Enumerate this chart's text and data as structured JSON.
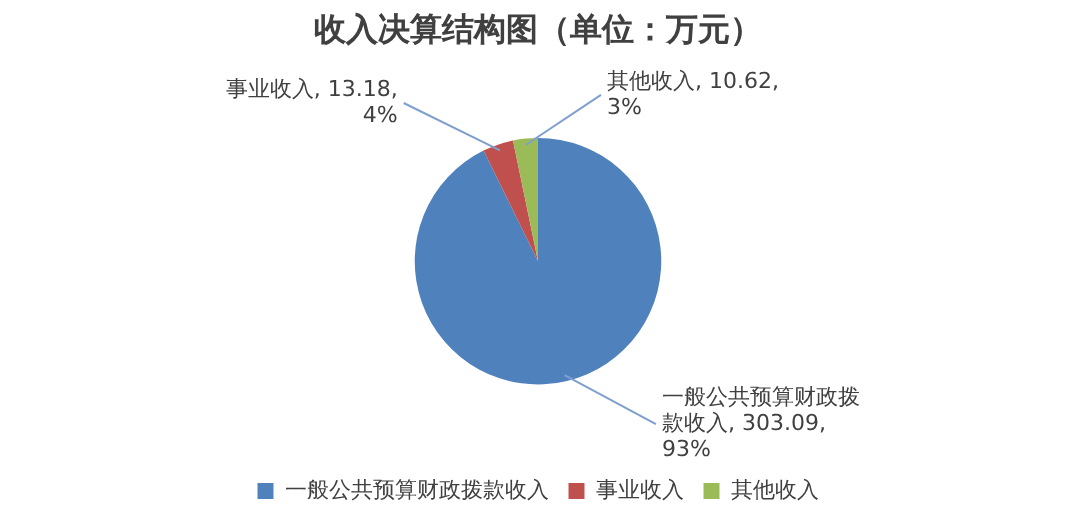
{
  "chart_data": {
    "type": "pie",
    "title": "收入决算结构图（单位：万元）",
    "categories": [
      "一般公共预算财政拨款收入",
      "事业收入",
      "其他收入"
    ],
    "values": [
      303.09,
      13.18,
      10.62
    ],
    "colors": [
      "#4f81bd",
      "#c0504d",
      "#9bbb59"
    ],
    "value_labels": [
      "一般公共预算财政拨款收入, 303.09, 93%",
      "事业收入, 13.18, 4%",
      "其他收入, 10.62, 3%"
    ],
    "legend": "bottom"
  }
}
